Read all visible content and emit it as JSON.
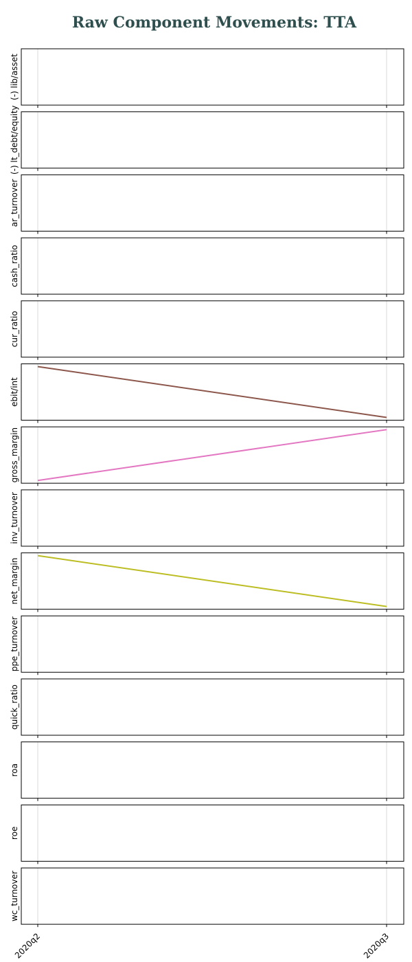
{
  "chart_data": {
    "type": "line",
    "title": "Raw Component Movements: TTA",
    "x": [
      "2020q2",
      "2020q3"
    ],
    "grid": "vertical",
    "panels": [
      {
        "ylabel": "(-) lib/asset",
        "values": null,
        "color": null
      },
      {
        "ylabel": "(-) lt_debt/equity",
        "values": null,
        "color": null
      },
      {
        "ylabel": "ar_turnover",
        "values": null,
        "color": null
      },
      {
        "ylabel": "cash_ratio",
        "values": null,
        "color": null
      },
      {
        "ylabel": "cur_ratio",
        "values": null,
        "color": null
      },
      {
        "ylabel": "ebit/int",
        "values": [
          1,
          0
        ],
        "color": "#8c564b"
      },
      {
        "ylabel": "gross_margin",
        "values": [
          0,
          1
        ],
        "color": "#e377c2"
      },
      {
        "ylabel": "inv_turnover",
        "values": null,
        "color": null
      },
      {
        "ylabel": "net_margin",
        "values": [
          1,
          0
        ],
        "color": "#bcbd22"
      },
      {
        "ylabel": "ppe_turnover",
        "values": null,
        "color": null
      },
      {
        "ylabel": "quick_ratio",
        "values": null,
        "color": null
      },
      {
        "ylabel": "roa",
        "values": null,
        "color": null
      },
      {
        "ylabel": "roe",
        "values": null,
        "color": null
      },
      {
        "ylabel": "wc_turnover",
        "values": null,
        "color": null
      }
    ]
  }
}
